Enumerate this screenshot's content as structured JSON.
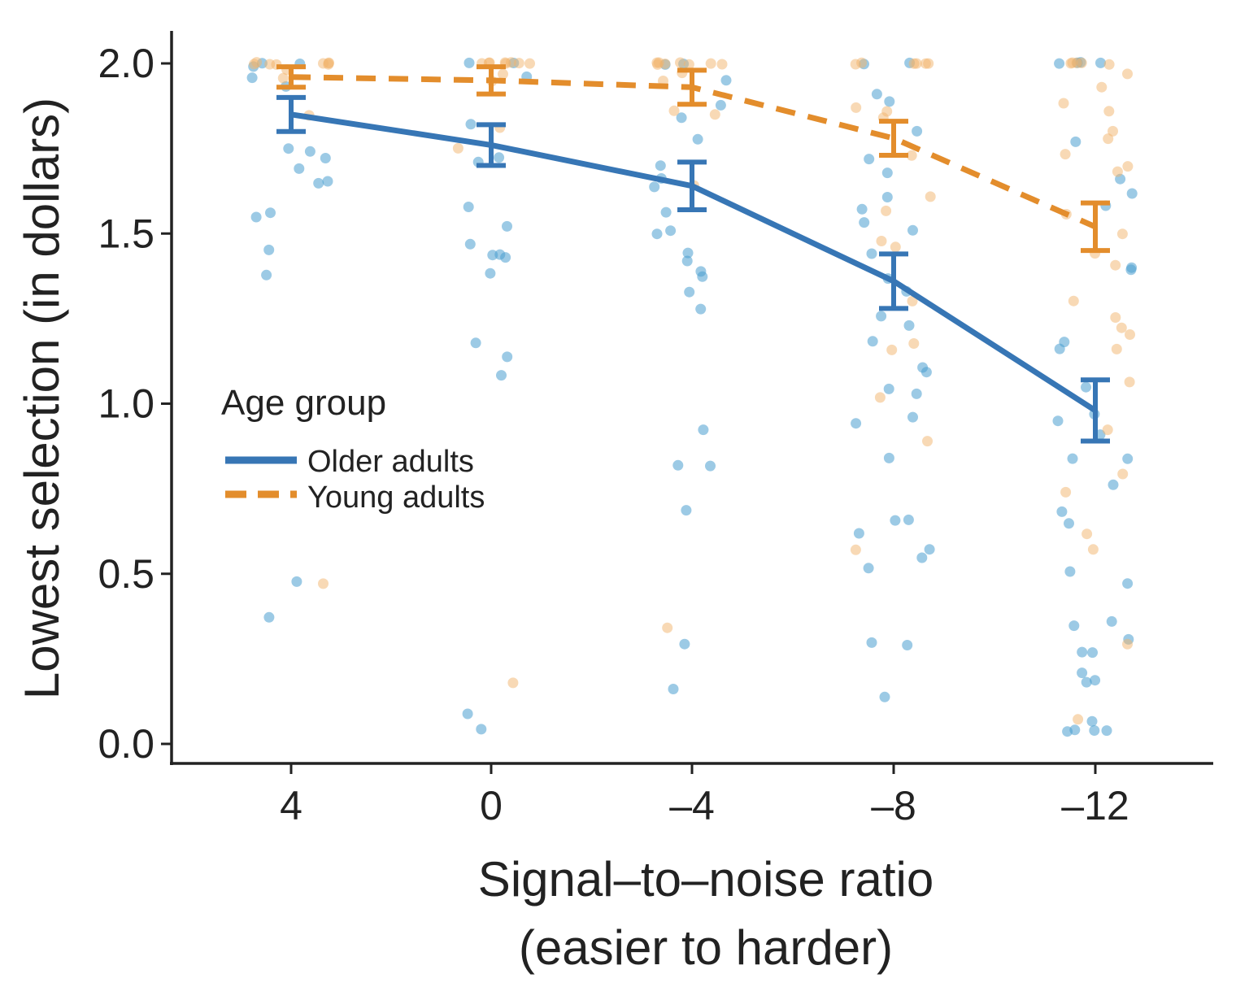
{
  "chart_data": {
    "type": "line",
    "xlabel_line1": "Signal–to–noise ratio",
    "xlabel_line2": "(easier to harder)",
    "ylabel": "Lowest selection (in dollars)",
    "categories": [
      "4",
      "0",
      "–4",
      "–8",
      "–12"
    ],
    "yticks": [
      "0.0",
      "0.5",
      "1.0",
      "1.5",
      "2.0"
    ],
    "ylim": [
      -0.05,
      2.1
    ],
    "grid": false,
    "legend": {
      "title": "Age group",
      "position": "center-left"
    },
    "series": [
      {
        "name": "Older adults",
        "color": "#3776B5",
        "point_color": "#4A9FD0",
        "line_style": "solid",
        "values": [
          1.85,
          1.76,
          1.64,
          1.36,
          0.98
        ],
        "error": [
          0.05,
          0.06,
          0.07,
          0.08,
          0.09
        ],
        "points": [
          [
            1.96,
            1.93,
            1.74,
            1.72,
            1.65,
            1.65,
            1.56,
            1.55,
            1.75,
            1.69,
            1.45,
            1.38,
            0.48,
            0.37,
            2.0,
            2.0,
            1.99
          ],
          [
            1.96,
            1.72,
            1.71,
            1.52,
            1.47,
            1.44,
            1.44,
            1.43,
            1.38,
            1.58,
            1.82,
            1.18,
            1.14,
            1.08,
            0.09,
            0.04,
            2.0,
            2.0
          ],
          [
            1.95,
            1.88,
            1.84,
            1.78,
            1.7,
            1.64,
            1.66,
            1.56,
            1.51,
            1.5,
            1.44,
            1.42,
            1.39,
            1.37,
            1.33,
            1.28,
            0.92,
            0.82,
            0.82,
            0.69,
            0.29,
            0.16,
            2.0,
            2.0
          ],
          [
            1.91,
            1.89,
            1.8,
            1.72,
            1.68,
            1.61,
            1.57,
            1.53,
            1.51,
            1.44,
            1.37,
            1.33,
            1.26,
            1.23,
            1.18,
            1.11,
            1.09,
            1.04,
            1.03,
            0.96,
            0.94,
            0.84,
            0.66,
            0.66,
            0.62,
            0.57,
            0.55,
            0.52,
            0.3,
            0.29,
            0.14,
            2.0,
            2.0
          ],
          [
            1.77,
            1.66,
            1.62,
            1.58,
            1.4,
            1.39,
            1.18,
            1.16,
            1.05,
            0.97,
            0.95,
            0.91,
            0.84,
            0.84,
            0.76,
            0.68,
            0.65,
            0.51,
            0.47,
            0.36,
            0.35,
            0.31,
            0.27,
            0.27,
            0.21,
            0.19,
            0.18,
            0.07,
            0.04,
            0.04,
            0.04,
            0.04,
            2.0,
            2.0,
            2.0,
            2.0
          ]
        ]
      },
      {
        "name": "Young adults",
        "color": "#E38D2C",
        "point_color": "#F2B46B",
        "line_style": "dashed",
        "values": [
          1.96,
          1.95,
          1.93,
          1.78,
          1.52
        ],
        "error": [
          0.03,
          0.04,
          0.05,
          0.05,
          0.07
        ],
        "points": [
          [
            2.0,
            2.0,
            2.0,
            2.0,
            2.0,
            2.0,
            2.0,
            2.0,
            1.98,
            1.96,
            1.85,
            0.47
          ],
          [
            2.0,
            2.0,
            2.0,
            2.0,
            2.0,
            2.0,
            2.0,
            2.0,
            1.97,
            1.95,
            1.81,
            1.75,
            0.18
          ],
          [
            2.0,
            2.0,
            2.0,
            2.0,
            2.0,
            2.0,
            2.0,
            2.0,
            1.97,
            1.95,
            1.86,
            1.85,
            1.64,
            0.34
          ],
          [
            2.0,
            2.0,
            2.0,
            2.0,
            2.0,
            2.0,
            1.87,
            1.86,
            1.84,
            1.73,
            1.61,
            1.57,
            1.48,
            1.46,
            1.3,
            1.18,
            1.16,
            1.02,
            0.89,
            0.57
          ],
          [
            2.0,
            2.0,
            2.0,
            2.0,
            2.0,
            1.97,
            1.93,
            1.88,
            1.86,
            1.8,
            1.78,
            1.73,
            1.7,
            1.68,
            1.56,
            1.5,
            1.44,
            1.41,
            1.3,
            1.25,
            1.22,
            1.2,
            1.16,
            1.06,
            0.92,
            0.79,
            0.74,
            0.62,
            0.57,
            0.29,
            0.07
          ]
        ]
      }
    ]
  }
}
